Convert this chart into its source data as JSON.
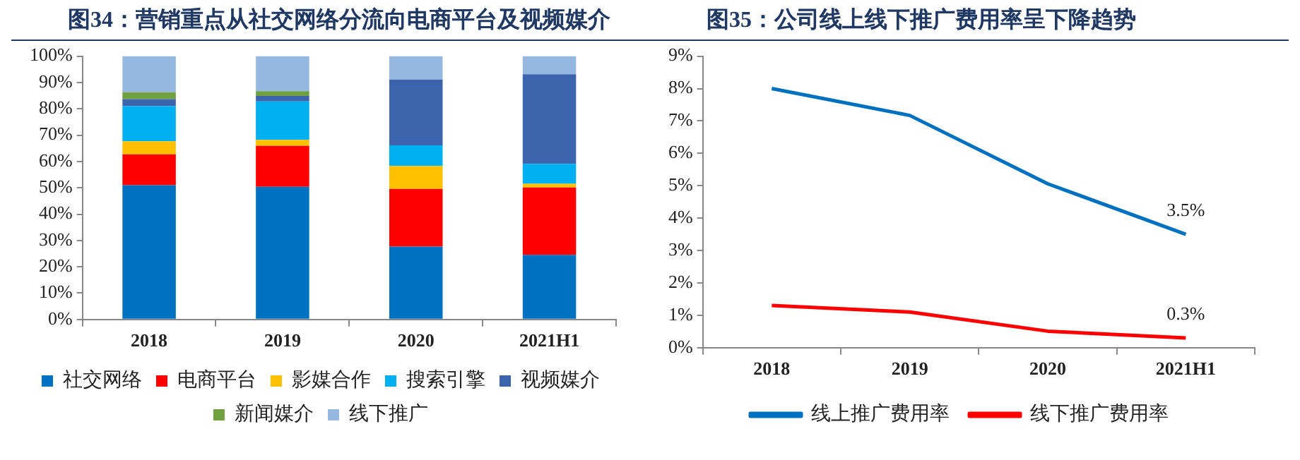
{
  "chart_data": [
    {
      "type": "bar",
      "title": "图34：营销重点从社交网络分流向电商平台及视频媒介",
      "stacked": true,
      "categories": [
        "2018",
        "2019",
        "2020",
        "2021H1"
      ],
      "ylim": [
        0,
        100
      ],
      "yticks": [
        {
          "value": 0,
          "label": "0%"
        },
        {
          "value": 10,
          "label": "10%"
        },
        {
          "value": 20,
          "label": "20%"
        },
        {
          "value": 30,
          "label": "30%"
        },
        {
          "value": 40,
          "label": "40%"
        },
        {
          "value": 50,
          "label": "50%"
        },
        {
          "value": 60,
          "label": "60%"
        },
        {
          "value": 70,
          "label": "70%"
        },
        {
          "value": 80,
          "label": "80%"
        },
        {
          "value": 90,
          "label": "90%"
        },
        {
          "value": 100,
          "label": "100%"
        }
      ],
      "grid": false,
      "legend": "bottom",
      "series": [
        {
          "name": "社交网络",
          "color": "#0070c0",
          "values": [
            51.0,
            50.4,
            27.7,
            24.5
          ]
        },
        {
          "name": "电商平台",
          "color": "#ff0000",
          "values": [
            11.7,
            15.5,
            21.9,
            25.6
          ]
        },
        {
          "name": "影媒合作",
          "color": "#ffc000",
          "values": [
            5.0,
            2.3,
            8.7,
            1.4
          ]
        },
        {
          "name": "搜索引擎",
          "color": "#00b0f0",
          "values": [
            13.3,
            14.6,
            7.8,
            7.6
          ]
        },
        {
          "name": "视频媒介",
          "color": "#3c64ac",
          "values": [
            2.7,
            2.1,
            25.0,
            34.0
          ]
        },
        {
          "name": "新闻媒介",
          "color": "#70a040",
          "values": [
            2.6,
            1.8,
            0,
            0
          ]
        },
        {
          "name": "线下推广",
          "color": "#95b8e0",
          "values": [
            13.7,
            13.3,
            8.9,
            6.9
          ]
        }
      ]
    },
    {
      "type": "line",
      "title": "图35：公司线上线下推广费用率呈下降趋势",
      "categories": [
        "2018",
        "2019",
        "2020",
        "2021H1"
      ],
      "ylim": [
        0,
        9
      ],
      "yticks": [
        {
          "value": 0,
          "label": "0%"
        },
        {
          "value": 1,
          "label": "1%"
        },
        {
          "value": 2,
          "label": "2%"
        },
        {
          "value": 3,
          "label": "3%"
        },
        {
          "value": 4,
          "label": "4%"
        },
        {
          "value": 5,
          "label": "5%"
        },
        {
          "value": 6,
          "label": "6%"
        },
        {
          "value": 7,
          "label": "7%"
        },
        {
          "value": 8,
          "label": "8%"
        },
        {
          "value": 9,
          "label": "9%"
        }
      ],
      "grid": false,
      "legend": "bottom",
      "marker": "none",
      "line_style": "solid",
      "series": [
        {
          "name": "线上推广费用率",
          "color": "#0070c0",
          "values": [
            8.0,
            7.17,
            5.06,
            3.5
          ],
          "value_labels": [
            null,
            null,
            null,
            "3.5%"
          ]
        },
        {
          "name": "线下推广费用率",
          "color": "#ff0000",
          "values": [
            1.3,
            1.1,
            0.51,
            0.3
          ],
          "value_labels": [
            null,
            null,
            null,
            "0.3%"
          ]
        }
      ]
    }
  ]
}
